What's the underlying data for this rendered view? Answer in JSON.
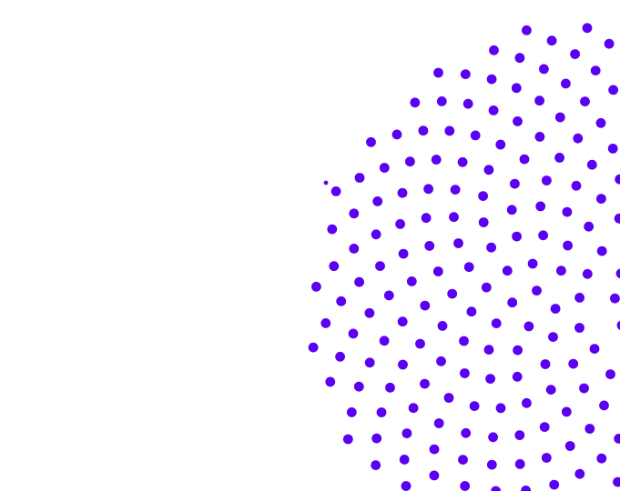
{
  "graphic": {
    "type": "phyllotaxis-dot-pattern",
    "dot_color": "#5b00f0",
    "background_color": "#ffffff",
    "dot_count": 330
  }
}
